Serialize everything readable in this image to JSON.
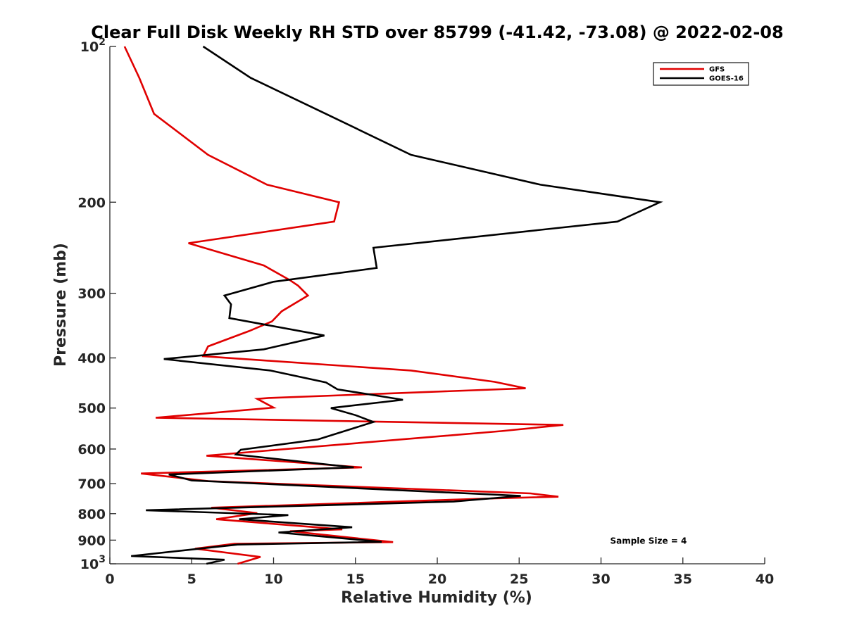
{
  "chart_data": {
    "type": "line",
    "title": "Clear Full Disk Weekly RH STD over 85799 (-41.42, -73.08) @ 2022-02-08",
    "xlabel": "Relative Humidity (%)",
    "ylabel": "Pressure (mb)",
    "xlim": [
      0,
      40
    ],
    "ylim": [
      100,
      1000
    ],
    "y_scale": "log",
    "y_reversed": true,
    "grid": false,
    "legend_position": "top-right",
    "x_ticks": [
      {
        "value": 0,
        "label": "0"
      },
      {
        "value": 5,
        "label": "5"
      },
      {
        "value": 10,
        "label": "10"
      },
      {
        "value": 15,
        "label": "15"
      },
      {
        "value": 20,
        "label": "20"
      },
      {
        "value": 25,
        "label": "25"
      },
      {
        "value": 30,
        "label": "30"
      },
      {
        "value": 35,
        "label": "35"
      },
      {
        "value": 40,
        "label": "40"
      }
    ],
    "y_ticks": [
      {
        "value": 100,
        "label": "10",
        "exp": "2"
      },
      {
        "value": 200,
        "label": "200",
        "exp": ""
      },
      {
        "value": 300,
        "label": "300",
        "exp": ""
      },
      {
        "value": 400,
        "label": "400",
        "exp": ""
      },
      {
        "value": 500,
        "label": "500",
        "exp": ""
      },
      {
        "value": 600,
        "label": "600",
        "exp": ""
      },
      {
        "value": 700,
        "label": "700",
        "exp": ""
      },
      {
        "value": 800,
        "label": "800",
        "exp": ""
      },
      {
        "value": 900,
        "label": "900",
        "exp": ""
      },
      {
        "value": 1000,
        "label": "10",
        "exp": "3"
      }
    ],
    "series": [
      {
        "name": "GFS",
        "color": "#e00000",
        "points": [
          [
            0.9,
            100
          ],
          [
            1.8,
            115
          ],
          [
            2.7,
            135
          ],
          [
            6.0,
            162
          ],
          [
            9.6,
            185
          ],
          [
            14.0,
            200
          ],
          [
            13.7,
            218
          ],
          [
            4.8,
            240
          ],
          [
            9.4,
            265
          ],
          [
            11.0,
            283
          ],
          [
            11.5,
            290
          ],
          [
            12.1,
            303
          ],
          [
            10.5,
            325
          ],
          [
            9.9,
            340
          ],
          [
            8.5,
            355
          ],
          [
            6.0,
            380
          ],
          [
            5.7,
            397
          ],
          [
            18.4,
            423
          ],
          [
            23.5,
            445
          ],
          [
            25.4,
            458
          ],
          [
            9.7,
            478
          ],
          [
            9.0,
            480
          ],
          [
            10.0,
            499
          ],
          [
            2.8,
            522
          ],
          [
            27.7,
            539
          ],
          [
            23.9,
            554
          ],
          [
            5.9,
            618
          ],
          [
            15.4,
            651
          ],
          [
            1.9,
            669
          ],
          [
            6.0,
            692
          ],
          [
            25.7,
            731
          ],
          [
            27.4,
            742
          ],
          [
            23.6,
            747
          ],
          [
            6.2,
            779
          ],
          [
            9.0,
            798
          ],
          [
            6.5,
            820
          ],
          [
            14.2,
            858
          ],
          [
            11.0,
            865
          ],
          [
            17.3,
            908
          ],
          [
            7.6,
            915
          ],
          [
            5.2,
            935
          ],
          [
            9.2,
            970
          ],
          [
            7.8,
            1000
          ]
        ]
      },
      {
        "name": "GOES-16",
        "color": "#000000",
        "points": [
          [
            5.7,
            100
          ],
          [
            8.6,
            115
          ],
          [
            13.2,
            135
          ],
          [
            18.4,
            162
          ],
          [
            26.3,
            185
          ],
          [
            33.6,
            200
          ],
          [
            31.0,
            218
          ],
          [
            16.1,
            245
          ],
          [
            16.3,
            268
          ],
          [
            10.0,
            285
          ],
          [
            7.0,
            303
          ],
          [
            7.4,
            315
          ],
          [
            7.3,
            335
          ],
          [
            13.1,
            362
          ],
          [
            9.4,
            385
          ],
          [
            3.3,
            402
          ],
          [
            9.8,
            423
          ],
          [
            13.2,
            446
          ],
          [
            13.9,
            460
          ],
          [
            17.9,
            482
          ],
          [
            13.5,
            500
          ],
          [
            15.0,
            516
          ],
          [
            16.1,
            532
          ],
          [
            14.5,
            552
          ],
          [
            12.7,
            575
          ],
          [
            8.0,
            602
          ],
          [
            7.7,
            615
          ],
          [
            14.9,
            651
          ],
          [
            3.6,
            672
          ],
          [
            5.0,
            690
          ],
          [
            25.1,
            739
          ],
          [
            21.0,
            758
          ],
          [
            2.2,
            788
          ],
          [
            10.9,
            805
          ],
          [
            7.9,
            820
          ],
          [
            14.8,
            850
          ],
          [
            10.3,
            870
          ],
          [
            16.6,
            907
          ],
          [
            7.8,
            918
          ],
          [
            1.3,
            966
          ],
          [
            7.0,
            982
          ],
          [
            5.9,
            1000
          ]
        ]
      }
    ],
    "annotations": [
      {
        "text": "Sample Size = 4",
        "x": 32.9,
        "y": 900
      }
    ]
  }
}
